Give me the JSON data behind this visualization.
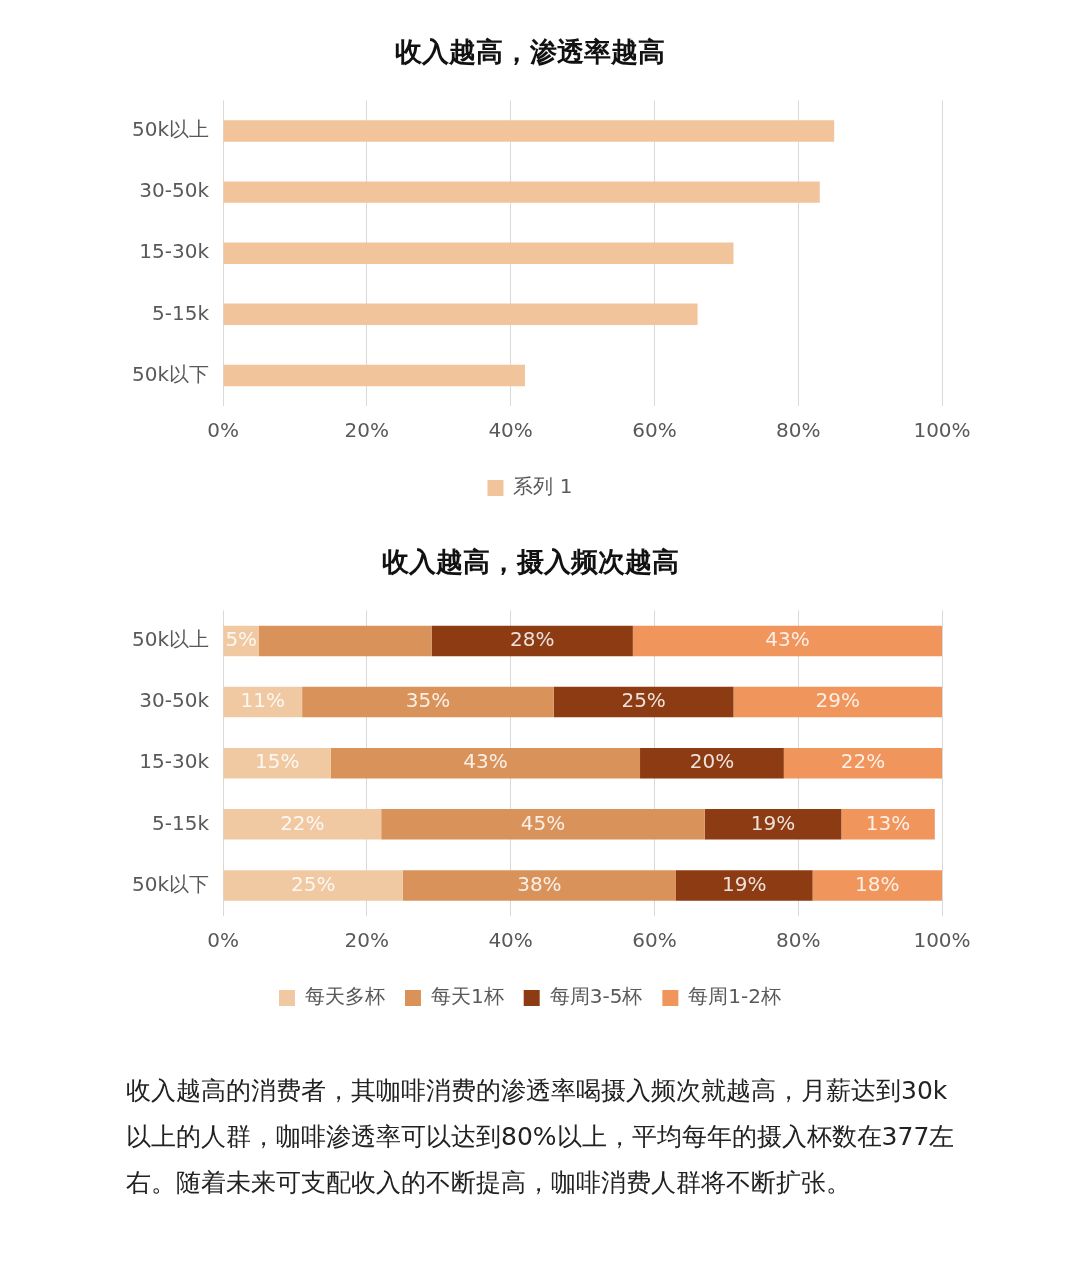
{
  "chart_data": [
    {
      "type": "bar",
      "orientation": "horizontal",
      "title": "收入越高，渗透率越高",
      "categories": [
        "50k以上",
        "30-50k",
        "15-30k",
        "5-15k",
        "50k以下"
      ],
      "series": [
        {
          "name": "系列 1",
          "color": "#f1c49c",
          "values": [
            85,
            83,
            71,
            66,
            42
          ]
        }
      ],
      "xlim": [
        0,
        100
      ],
      "xticks": [
        {
          "value": 0,
          "label": "0%"
        },
        {
          "value": 20,
          "label": "20%"
        },
        {
          "value": 40,
          "label": "40%"
        },
        {
          "value": 60,
          "label": "60%"
        },
        {
          "value": 80,
          "label": "80%"
        },
        {
          "value": 100,
          "label": "100%"
        }
      ],
      "grid": "x",
      "legend": "bottom"
    },
    {
      "type": "bar",
      "orientation": "horizontal",
      "stacked": true,
      "title": "收入越高，摄入频次越高",
      "categories": [
        "50k以上",
        "30-50k",
        "15-30k",
        "5-15k",
        "50k以下"
      ],
      "series": [
        {
          "name": "每天多杯",
          "color": "#f0c9a2",
          "values": [
            5,
            11,
            15,
            22,
            25
          ],
          "value_labels": [
            "5%",
            "11%",
            "15%",
            "22%",
            "25%"
          ]
        },
        {
          "name": "每天1杯",
          "color": "#d9935a",
          "values": [
            24,
            35,
            43,
            45,
            38
          ],
          "value_labels": [
            null,
            "35%",
            "43%",
            "45%",
            "38%"
          ]
        },
        {
          "name": "每周3-5杯",
          "color": "#8c3b12",
          "values": [
            28,
            25,
            20,
            19,
            19
          ],
          "value_labels": [
            "28%",
            "25%",
            "20%",
            "19%",
            "19%"
          ]
        },
        {
          "name": "每周1-2杯",
          "color": "#f0955c",
          "values": [
            43,
            29,
            22,
            13,
            18
          ],
          "value_labels": [
            "43%",
            "29%",
            "22%",
            "13%",
            "18%"
          ]
        }
      ],
      "xlim": [
        0,
        100
      ],
      "xticks": [
        {
          "value": 0,
          "label": "0%"
        },
        {
          "value": 20,
          "label": "20%"
        },
        {
          "value": 40,
          "label": "40%"
        },
        {
          "value": 60,
          "label": "60%"
        },
        {
          "value": 80,
          "label": "80%"
        },
        {
          "value": 100,
          "label": "100%"
        }
      ],
      "grid": "x",
      "legend": "bottom",
      "annotations": [
        "收入越高的消费者，其咖啡消费的渗透率喝摄入频次就越高，月薪达到30k以上的人群，咖啡渗透率可以达到80%以上，平均每年的摄入杯数在377左右。随着未来可支配收入的不断提高，咖啡消费人群将不断扩张。"
      ]
    }
  ]
}
